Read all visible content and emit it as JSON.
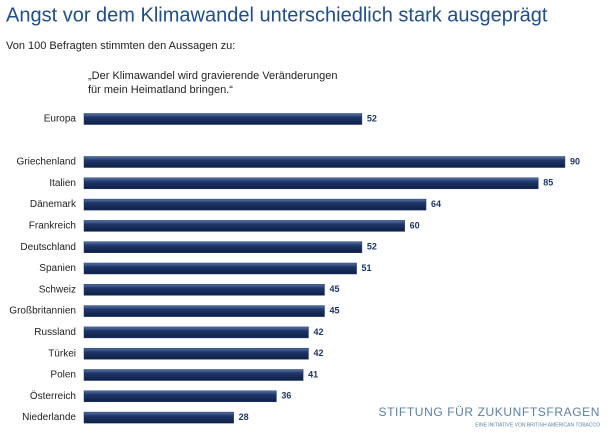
{
  "chart_data": {
    "type": "bar",
    "orientation": "horizontal",
    "title": "Angst vor dem Klimawandel unterschiedlich stark ausgeprägt",
    "subtitle": "Von 100 Befragten stimmten den Aussagen zu:",
    "quote": [
      "„Der Klimawandel wird gravierende Veränderungen",
      "für mein Heimatland bringen.“"
    ],
    "categories": [
      "Europa",
      "Griechenland",
      "Italien",
      "Dänemark",
      "Frankreich",
      "Deutschland",
      "Spanien",
      "Schweiz",
      "Großbritannien",
      "Russland",
      "Türkei",
      "Polen",
      "Österreich",
      "Niederlande"
    ],
    "values": [
      52,
      90,
      85,
      64,
      60,
      52,
      51,
      45,
      45,
      42,
      42,
      41,
      36,
      28
    ],
    "color": "#1e3669"
  },
  "logo": {
    "name": "STIFTUNG FÜR ZUKUNFTSFRAGEN",
    "tagline": "EINE INITIATIVE VON BRITISH AMERICAN TOBACCO"
  }
}
